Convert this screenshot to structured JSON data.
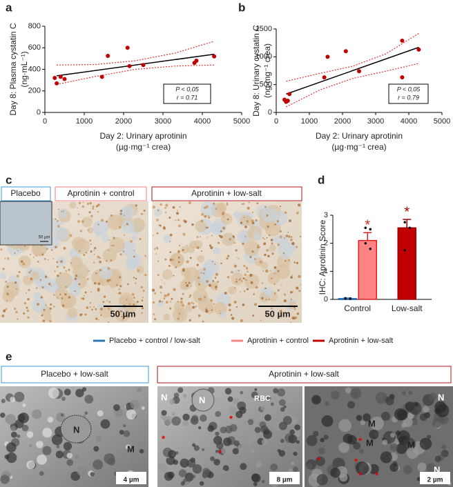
{
  "panel_labels": [
    "a",
    "b",
    "c",
    "d",
    "e"
  ],
  "chart_data": [
    {
      "type": "scatter",
      "xlabel": [
        "Day 2: Urinary aprotinin",
        "(µg·mg⁻¹ crea)"
      ],
      "ylabel": [
        "Day 8: Plasma cystatin C",
        "(ng·mL⁻¹)"
      ],
      "x": [
        250,
        300,
        400,
        500,
        1450,
        1600,
        2100,
        2150,
        2500,
        3800,
        3850,
        4300
      ],
      "values": [
        320,
        270,
        330,
        310,
        330,
        525,
        600,
        430,
        440,
        460,
        480,
        520
      ],
      "color": "#c00000",
      "fit": {
        "color": "#000000",
        "x": [
          300,
          4300
        ],
        "values": [
          340,
          540
        ]
      },
      "ci_upper": {
        "color": "#e03030",
        "x": [
          300,
          1300,
          2300,
          3300,
          4300
        ],
        "values": [
          440,
          445,
          480,
          550,
          660
        ]
      },
      "ci_lower": {
        "color": "#e03030",
        "x": [
          300,
          1300,
          2300,
          3300,
          4300
        ],
        "values": [
          260,
          335,
          400,
          430,
          440
        ]
      },
      "xlim": [
        0,
        5000
      ],
      "xticks": [
        0,
        1000,
        2000,
        3000,
        4000,
        5000
      ],
      "ylim": [
        0,
        800
      ],
      "yticks": [
        0,
        200,
        400,
        600,
        800
      ],
      "annotations": [
        "P < 0,05",
        "r = 0.71"
      ]
    },
    {
      "type": "scatter",
      "xlabel": [
        "Day 2: Urinary aprotinin",
        "(µg·mg⁻¹ crea)"
      ],
      "ylabel": [
        "Day 8: Urinary cystatin C",
        "(ng·mg⁻¹ crea)"
      ],
      "x": [
        250,
        300,
        350,
        400,
        1450,
        1550,
        2100,
        2500,
        3800,
        3800,
        4300
      ],
      "values": [
        230,
        190,
        210,
        330,
        630,
        1000,
        1100,
        740,
        1290,
        630,
        1130
      ],
      "color": "#c00000",
      "fit": {
        "color": "#000000",
        "x": [
          300,
          4300
        ],
        "values": [
          330,
          1170
        ]
      },
      "ci_upper": {
        "color": "#e03030",
        "x": [
          300,
          1300,
          2300,
          3300,
          4300
        ],
        "values": [
          560,
          700,
          830,
          1050,
          1420
        ]
      },
      "ci_lower": {
        "color": "#e03030",
        "x": [
          300,
          1300,
          2300,
          3300,
          4300
        ],
        "values": [
          100,
          400,
          610,
          740,
          880
        ]
      },
      "xlim": [
        0,
        5000
      ],
      "xticks": [
        0,
        1000,
        2000,
        3000,
        4000,
        5000
      ],
      "ylim": [
        0,
        1500
      ],
      "yticks": [
        0,
        500,
        1000,
        1500
      ],
      "annotations": [
        "P < 0,05",
        "r = 0.79"
      ]
    },
    {
      "type": "bar",
      "ylabel": "IHC: Aprotinin Score",
      "categories": [
        "Control",
        "Low-salt"
      ],
      "series": [
        {
          "name": "Placebo + control / low-salt",
          "color": "#2e75b6",
          "edge": "#2e75b6",
          "values": [
            0.03,
            null
          ],
          "errors": [
            0.02,
            null
          ],
          "points": [
            [
              0.03,
              0.02,
              0.04,
              0.03
            ],
            null
          ]
        },
        {
          "name": "Aprotinin + control",
          "color": "#ff8585",
          "edge": "#e02020",
          "values": [
            2.1,
            null
          ],
          "errors": [
            0.28,
            null
          ],
          "points": [
            [
              2.55,
              2.5,
              2.0,
              1.8
            ],
            null
          ],
          "annotation": "*"
        },
        {
          "name": "Aprotinin + low-salt",
          "color": "#c00000",
          "edge": "#a00000",
          "values": [
            null,
            2.55
          ],
          "errors": [
            null,
            0.3
          ],
          "points": [
            null,
            [
              2.75,
              2.55,
              1.75
            ]
          ],
          "annotation": "*"
        }
      ],
      "ylim": [
        0,
        3
      ],
      "yticks": [
        0,
        1,
        2,
        3
      ]
    }
  ],
  "figure_c": {
    "headers": [
      "Placebo",
      "Aprotinin + control",
      "Aprotinin  + low-salt"
    ],
    "scale_bars": [
      "50 µm",
      "50 µm",
      "50 µm"
    ]
  },
  "figure_e": {
    "headers": [
      "Placebo +  low-salt",
      "Aprotinin  + low-salt"
    ],
    "scale_bars": [
      "4 µm",
      "8 µm",
      "2 µm"
    ],
    "labels": [
      "N",
      "M",
      "N",
      "N",
      "RBC",
      "M",
      "M",
      "M",
      "N",
      "N",
      "*",
      "*",
      "*",
      "*",
      "*",
      "*",
      "*",
      "*"
    ]
  }
}
